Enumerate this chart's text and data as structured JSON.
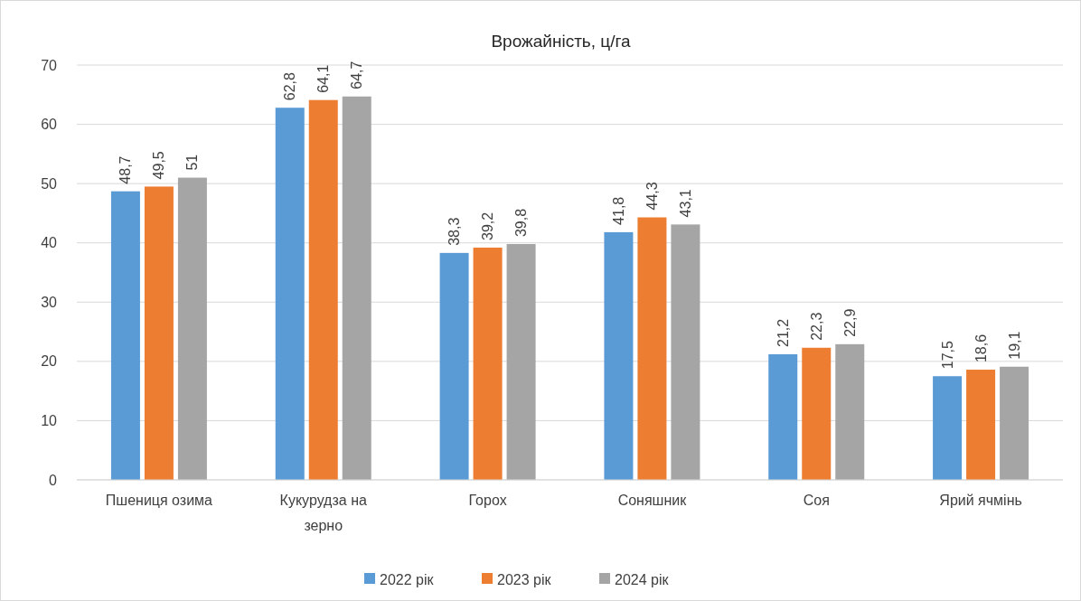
{
  "chart_data": {
    "type": "bar",
    "title": "Врожайність, ц/га",
    "categories": [
      "Пшениця озима",
      "Кукурудза на зерно",
      "Горох",
      "Соняшник",
      "Соя",
      "Ярий ячмінь"
    ],
    "series": [
      {
        "name": "2022 рік",
        "color": "#5b9bd5",
        "values": [
          48.7,
          62.8,
          38.3,
          41.8,
          21.2,
          17.5
        ],
        "value_labels": [
          "48,7",
          "62,8",
          "38,3",
          "41,8",
          "21,2",
          "17,5"
        ]
      },
      {
        "name": "2023 рік",
        "color": "#ed7d31",
        "values": [
          49.5,
          64.1,
          39.2,
          44.3,
          22.3,
          18.6
        ],
        "value_labels": [
          "49,5",
          "64,1",
          "39,2",
          "44,3",
          "22,3",
          "18,6"
        ]
      },
      {
        "name": "2024 рік",
        "color": "#a5a5a5",
        "values": [
          51,
          64.7,
          39.8,
          43.1,
          22.9,
          19.1
        ],
        "value_labels": [
          "51",
          "64,7",
          "39,8",
          "43,1",
          "22,9",
          "19,1"
        ]
      }
    ],
    "ylim": [
      0,
      70
    ],
    "yticks": [
      0,
      10,
      20,
      30,
      40,
      50,
      60,
      70
    ],
    "grid": "y",
    "legend": "bottom"
  }
}
